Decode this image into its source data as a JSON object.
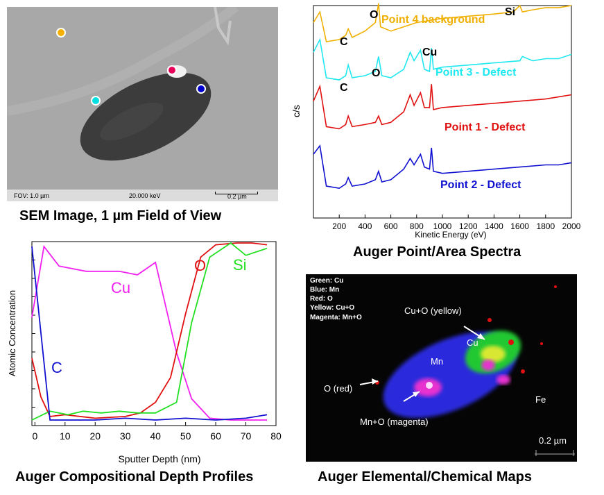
{
  "sem": {
    "fov_label": "FOV: 1.0 µm",
    "kev_label": "20.000 keV",
    "scale_label": "0.2 µm",
    "caption": "SEM Image, 1 µm Field of View",
    "point_colors": [
      "#f5b000",
      "#e8005a",
      "#0000cc",
      "#00e0e0"
    ]
  },
  "spectra": {
    "caption": "Auger Point/Area Spectra",
    "ylabel": "c/s",
    "xlabel": "Kinetic Energy (eV)",
    "xticks": [
      "200",
      "400",
      "600",
      "800",
      "1000",
      "1200",
      "1400",
      "1600",
      "1800",
      "2000"
    ],
    "labels": {
      "p4": "Point 4 background",
      "p3": "Point 3 - Defect",
      "p1": "Point 1 - Defect",
      "p2": "Point 2 - Defect",
      "c1": "C",
      "o1": "O",
      "si": "Si",
      "c2": "C",
      "o2": "O",
      "cu": "Cu"
    },
    "colors": {
      "p4": "#f0b000",
      "p3": "#20e8f0",
      "p1": "#e01010",
      "p2": "#1010d0"
    }
  },
  "depth": {
    "caption": "Auger Compositional Depth Profiles",
    "ylabel": "Atomic Concentration",
    "xlabel": "Sputter Depth (nm)",
    "xticks": [
      "0",
      "10",
      "20",
      "30",
      "40",
      "50",
      "60",
      "70",
      "80"
    ],
    "labels": {
      "cu": "Cu",
      "o": "O",
      "si": "Si",
      "c": "C"
    }
  },
  "map": {
    "caption": "Auger Elemental/Chemical Maps",
    "legend": [
      "Green: Cu",
      "Blue: Mn",
      "Red: O",
      "Yellow: Cu+O",
      "Magenta: Mn+O"
    ],
    "labels": {
      "cuo": "Cu+O (yellow)",
      "cu": "Cu",
      "mn": "Mn",
      "ored": "O (red)",
      "mno": "Mn+O (magenta)",
      "fe": "Fe",
      "scale": "0.2 µm"
    }
  },
  "chart_data": [
    {
      "type": "line",
      "title": "Auger Point/Area Spectra",
      "xlabel": "Kinetic Energy (eV)",
      "ylabel": "c/s",
      "xlim": [
        0,
        2000
      ],
      "series": [
        {
          "name": "Point 4 background",
          "color": "#f0b000",
          "x": [
            0,
            50,
            100,
            200,
            250,
            270,
            300,
            400,
            480,
            505,
            520,
            600,
            700,
            800,
            900,
            1000,
            1200,
            1400,
            1550,
            1600,
            1620,
            1700,
            1800,
            1900,
            2000
          ],
          "y": [
            0.92,
            0.97,
            0.83,
            0.84,
            0.86,
            0.89,
            0.85,
            0.88,
            0.92,
            1.01,
            0.9,
            0.88,
            0.9,
            0.92,
            0.93,
            0.94,
            0.95,
            0.96,
            0.97,
            1.0,
            0.97,
            0.98,
            0.99,
            0.99,
            1.0
          ]
        },
        {
          "name": "Point 3 - Defect",
          "color": "#20e8f0",
          "x": [
            0,
            50,
            100,
            200,
            250,
            270,
            300,
            400,
            480,
            505,
            530,
            600,
            700,
            750,
            780,
            830,
            860,
            900,
            915,
            930,
            1000,
            1200,
            1400,
            1600,
            1620,
            1700,
            1800,
            1900,
            2000
          ],
          "y": [
            0.78,
            0.84,
            0.66,
            0.65,
            0.67,
            0.72,
            0.66,
            0.67,
            0.69,
            0.76,
            0.67,
            0.66,
            0.7,
            0.78,
            0.74,
            0.79,
            0.7,
            0.69,
            0.8,
            0.7,
            0.71,
            0.72,
            0.73,
            0.74,
            0.76,
            0.74,
            0.75,
            0.75,
            0.77
          ]
        },
        {
          "name": "Point 1 - Defect",
          "color": "#e01010",
          "x": [
            0,
            50,
            100,
            200,
            250,
            270,
            300,
            400,
            480,
            505,
            530,
            600,
            700,
            750,
            780,
            830,
            860,
            900,
            915,
            930,
            1000,
            1200,
            1400,
            1600,
            1800,
            1900,
            2000
          ],
          "y": [
            0.55,
            0.62,
            0.43,
            0.42,
            0.44,
            0.48,
            0.43,
            0.44,
            0.45,
            0.48,
            0.44,
            0.45,
            0.5,
            0.58,
            0.53,
            0.59,
            0.52,
            0.52,
            0.63,
            0.51,
            0.52,
            0.53,
            0.54,
            0.55,
            0.56,
            0.57,
            0.58
          ]
        },
        {
          "name": "Point 2 - Defect",
          "color": "#1010d0",
          "x": [
            0,
            50,
            100,
            200,
            250,
            270,
            300,
            400,
            480,
            505,
            530,
            600,
            700,
            750,
            780,
            830,
            860,
            900,
            915,
            930,
            1000,
            1200,
            1400,
            1600,
            1800,
            1900,
            2000
          ],
          "y": [
            0.3,
            0.34,
            0.15,
            0.14,
            0.16,
            0.19,
            0.15,
            0.16,
            0.18,
            0.22,
            0.17,
            0.18,
            0.23,
            0.28,
            0.25,
            0.3,
            0.24,
            0.23,
            0.33,
            0.22,
            0.21,
            0.22,
            0.23,
            0.24,
            0.25,
            0.25,
            0.26
          ]
        }
      ]
    },
    {
      "type": "line",
      "title": "Auger Compositional Depth Profiles",
      "xlabel": "Sputter Depth (nm)",
      "ylabel": "Atomic Concentration",
      "xlim": [
        -1,
        80
      ],
      "ylim": [
        0,
        1
      ],
      "series": [
        {
          "name": "Cu",
          "color": "#f020f0",
          "x": [
            -1,
            3,
            8,
            17,
            28,
            34,
            40,
            47,
            52,
            58,
            65,
            72,
            77
          ],
          "y": [
            0.58,
            0.98,
            0.87,
            0.84,
            0.84,
            0.82,
            0.89,
            0.38,
            0.12,
            0.01,
            0.0,
            0.0,
            0.0
          ]
        },
        {
          "name": "O",
          "color": "#e01010",
          "x": [
            -1,
            2,
            5,
            10,
            20,
            30,
            35,
            40,
            45,
            50,
            55,
            60,
            67,
            72,
            77
          ],
          "y": [
            0.35,
            0.13,
            0.02,
            0.03,
            0.01,
            0.02,
            0.04,
            0.1,
            0.24,
            0.6,
            0.92,
            0.99,
            1.0,
            1.0,
            0.99
          ]
        },
        {
          "name": "Si",
          "color": "#20e020",
          "x": [
            -1,
            5,
            11,
            16,
            22,
            28,
            34,
            40,
            47,
            52,
            58,
            65,
            70,
            77
          ],
          "y": [
            0.0,
            0.05,
            0.03,
            0.05,
            0.04,
            0.05,
            0.04,
            0.04,
            0.1,
            0.55,
            0.92,
            1.0,
            0.93,
            0.97
          ]
        },
        {
          "name": "C",
          "color": "#1010d0",
          "x": [
            -1,
            5,
            10,
            20,
            30,
            40,
            50,
            60,
            70,
            77
          ],
          "y": [
            0.98,
            0.0,
            0.0,
            0.0,
            0.01,
            0.0,
            0.01,
            0.0,
            0.01,
            0.03
          ]
        }
      ]
    }
  ]
}
